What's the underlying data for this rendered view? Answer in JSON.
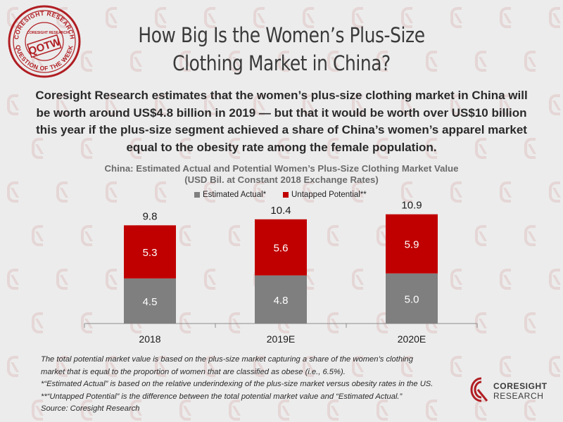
{
  "title": "How Big Is the Women’s Plus-Size Clothing Market in China?",
  "subtitle": "Coresight Research estimates that the women’s plus-size clothing market in China will be worth around US$4.8 billion in 2019 — but that it would be worth over US$10 billion this year if the plus-size segment achieved a share of China’s women’s apparel market equal to the obesity rate among the female population.",
  "stamp": {
    "top_text": "CORESIGHT RESEARCH",
    "bottom_text": "QUESTION OF THE WEEK",
    "badge": "QOTW",
    "mini_logo": "CORESIGHT RESEARCH"
  },
  "colors": {
    "estimated_actual": "#7f7f7f",
    "untapped_potential": "#c00000",
    "brand_red": "#b01e23"
  },
  "chart_data": {
    "type": "bar",
    "stacked": true,
    "title": "China: Estimated Actual and Potential Women’s Plus-Size Clothing Market Value",
    "subtitle": "(USD Bil. at Constant 2018 Exchange Rates)",
    "categories": [
      "2018",
      "2019E",
      "2020E"
    ],
    "series": [
      {
        "name": "Estimated Actual*",
        "values": [
          4.5,
          4.8,
          5.0
        ],
        "color": "#7f7f7f"
      },
      {
        "name": "Untapped Potential**",
        "values": [
          5.3,
          5.6,
          5.9
        ],
        "color": "#c00000"
      }
    ],
    "totals": [
      "9.8",
      "10.4",
      "10.9"
    ],
    "value_labels": [
      [
        "4.5",
        "4.8",
        "5.0"
      ],
      [
        "5.3",
        "5.6",
        "5.9"
      ]
    ],
    "ylim": [
      0,
      12
    ],
    "legend_position": "top-center",
    "grid": false,
    "xlabel": "",
    "ylabel": ""
  },
  "footnotes": [
    "The total potential market value is based on the plus-size market capturing a share of the women’s clothing",
    "market that is equal to the proportion of women that are classified as obese (i.e., 6.5%).",
    "*“Estimated Actual” is based on the relative underindexing of the plus-size market versus obesity rates in the US.",
    "**“Untapped Potential” is the difference between the total potential market value and “Estimated Actual.”",
    "Source: Coresight Research"
  ],
  "logo": {
    "line1": "CORESIGHT",
    "line2": "RESEARCH"
  }
}
